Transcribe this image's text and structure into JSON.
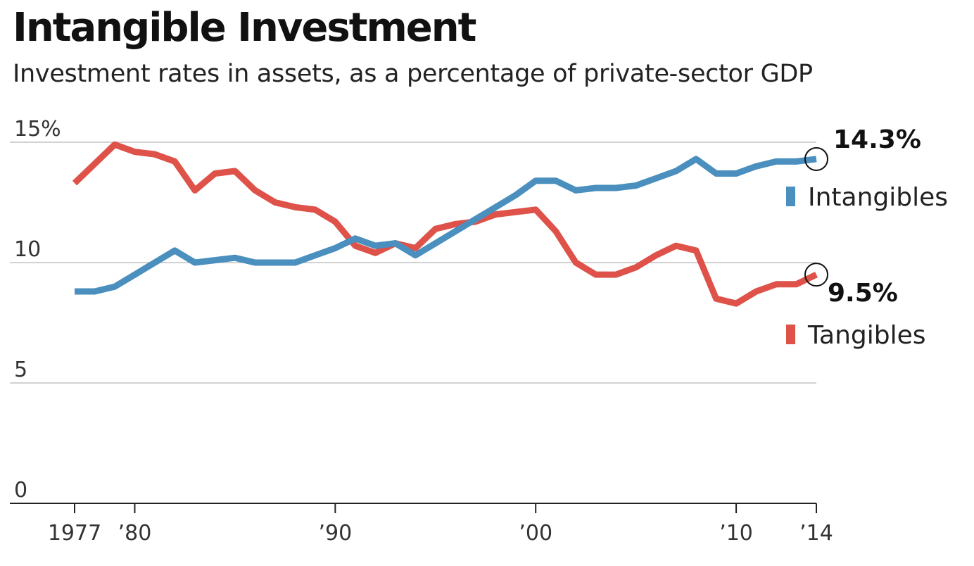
{
  "chart_data": {
    "type": "line",
    "title": "Intangible Investment",
    "subtitle": "Investment rates in assets, as a percentage of private-sector GDP",
    "ylim": [
      0,
      15
    ],
    "y_ticks": [
      {
        "value": 0,
        "label": "0"
      },
      {
        "value": 5,
        "label": "5"
      },
      {
        "value": 10,
        "label": "10"
      },
      {
        "value": 15,
        "label": "15%"
      }
    ],
    "xlim": [
      1977,
      2014
    ],
    "x_ticks": [
      {
        "value": 1977,
        "label": "1977"
      },
      {
        "value": 1980,
        "label": "’80"
      },
      {
        "value": 1990,
        "label": "’90"
      },
      {
        "value": 2000,
        "label": "’00"
      },
      {
        "value": 2010,
        "label": "’10"
      },
      {
        "value": 2014,
        "label": "’14"
      }
    ],
    "x": [
      1977,
      1978,
      1979,
      1980,
      1981,
      1982,
      1983,
      1984,
      1985,
      1986,
      1987,
      1988,
      1989,
      1990,
      1991,
      1992,
      1993,
      1994,
      1995,
      1996,
      1997,
      1998,
      1999,
      2000,
      2001,
      2002,
      2003,
      2004,
      2005,
      2006,
      2007,
      2008,
      2009,
      2010,
      2011,
      2012,
      2013,
      2014
    ],
    "series": [
      {
        "name": "Intangibles",
        "color": "#4a8fbe",
        "values": [
          8.8,
          8.8,
          9.0,
          9.5,
          10.0,
          10.5,
          10.0,
          10.1,
          10.2,
          10.0,
          10.0,
          10.0,
          10.3,
          10.6,
          11.0,
          10.7,
          10.8,
          10.3,
          10.8,
          11.3,
          11.8,
          12.3,
          12.8,
          13.4,
          13.4,
          13.0,
          13.1,
          13.1,
          13.2,
          13.5,
          13.8,
          14.3,
          13.7,
          13.7,
          14.0,
          14.2,
          14.2,
          14.3
        ],
        "end_label": "14.3%"
      },
      {
        "name": "Tangibles",
        "color": "#de5249",
        "values": [
          13.3,
          14.1,
          14.9,
          14.6,
          14.5,
          14.2,
          13.0,
          13.7,
          13.8,
          13.0,
          12.5,
          12.3,
          12.2,
          11.7,
          10.7,
          10.4,
          10.8,
          10.6,
          11.4,
          11.6,
          11.7,
          12.0,
          12.1,
          12.2,
          11.3,
          10.0,
          9.5,
          9.5,
          9.8,
          10.3,
          10.7,
          10.5,
          8.5,
          8.3,
          8.8,
          9.1,
          9.1,
          9.5
        ],
        "end_label": "9.5%"
      }
    ],
    "grid": true,
    "legend_position": "right"
  }
}
